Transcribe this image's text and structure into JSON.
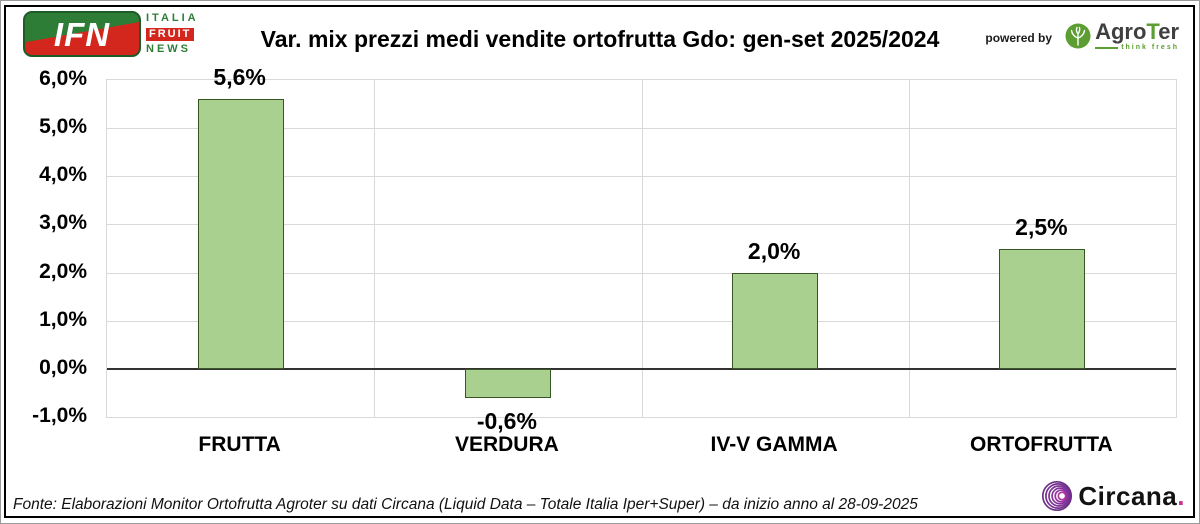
{
  "header": {
    "title": "Var. mix prezzi medi vendite ortofrutta Gdo: gen-set 2025/2024",
    "ifn": {
      "abbr": "IFN",
      "line1": "ITALIA",
      "line2": "FRUIT",
      "line3": "NEWS"
    },
    "powered_by": "powered by",
    "agroter": {
      "part1": "Agro",
      "part2": "T",
      "part3": "er",
      "tagline": "think fresh"
    }
  },
  "chart_data": {
    "type": "bar",
    "title": "Var. mix prezzi medi vendite ortofrutta Gdo: gen-set 2025/2024",
    "categories": [
      "FRUTTA",
      "VERDURA",
      "IV-V GAMMA",
      "ORTOFRUTTA"
    ],
    "values": [
      5.6,
      -0.6,
      2.0,
      2.5
    ],
    "value_labels": [
      "5,6%",
      "-0,6%",
      "2,0%",
      "2,5%"
    ],
    "y_ticks": [
      6,
      5,
      4,
      3,
      2,
      1,
      0,
      -1
    ],
    "y_tick_labels": [
      "6,0%",
      "5,0%",
      "4,0%",
      "3,0%",
      "2,0%",
      "1,0%",
      "0,0%",
      "-1,0%"
    ],
    "ylim": [
      -1,
      6
    ],
    "xlabel": "",
    "ylabel": "",
    "grid": true,
    "legend": false,
    "bar_color": "#A9D08E",
    "bar_border_color": "#375623",
    "gridline_color": "#D9D9D9",
    "zero_line_color": "#333333"
  },
  "footer": {
    "source": "Fonte: Elaborazioni Monitor Ortofrutta Agroter su dati Circana (Liquid Data – Totale Italia Iper+Super) –  da inizio anno al 28-09-2025",
    "circana_name": "Circana",
    "circana_dot": "."
  }
}
